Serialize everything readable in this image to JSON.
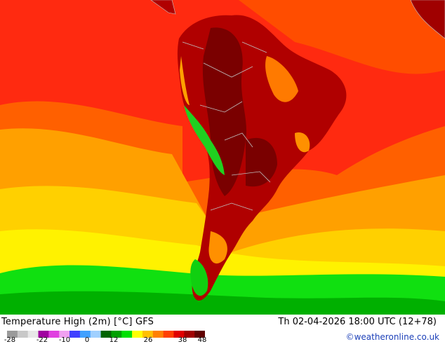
{
  "title": "Temperature High (2m) [°C] GFS",
  "valid_time": "Th 02-04-2026 18:00 UTC (12+78)",
  "credit": "©weatheronline.co.uk",
  "legend": {
    "tick_labels": [
      "-28",
      "-22",
      "-10",
      "0",
      "12",
      "26",
      "38",
      "48"
    ],
    "colors": [
      "#9a9a9a",
      "#c8c8c8",
      "#e8e8e8",
      "#a000a0",
      "#e040e0",
      "#f0a0f0",
      "#4040ff",
      "#40a0ff",
      "#a0d0ff",
      "#006400",
      "#00a000",
      "#00e000",
      "#ffff00",
      "#ffc000",
      "#ff8000",
      "#ff4000",
      "#e00000",
      "#a00000",
      "#600000"
    ]
  },
  "map_colors": {
    "ocean_cool": "#00dd00",
    "ocean_mild": "#ffe000",
    "ocean_warm": "#ffa000",
    "ocean_hot": "#ff3000",
    "land_hot": "#b00000",
    "land_extreme": "#7a0000",
    "andes_cold": "#20d020",
    "borders": "#b0b0b0"
  }
}
